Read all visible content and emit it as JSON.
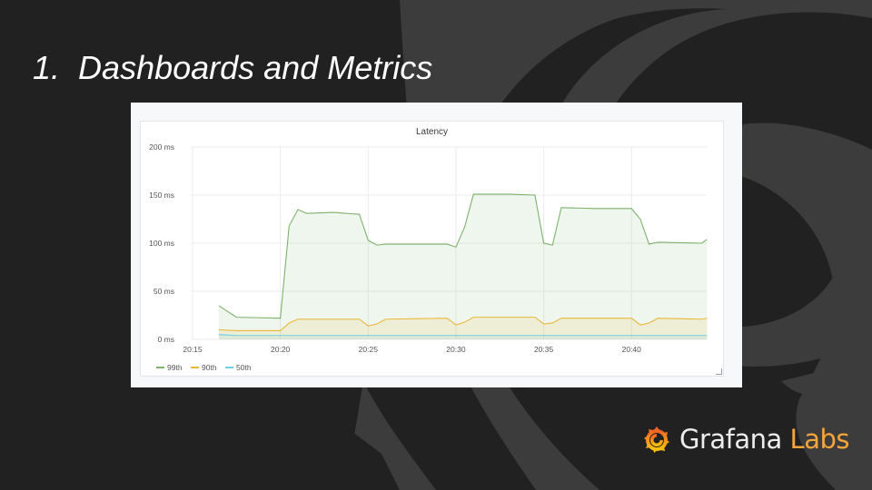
{
  "slide": {
    "title_number": "1.",
    "title_text": "Dashboards and Metrics"
  },
  "panel": {
    "title": "Latency"
  },
  "brand": {
    "name": "Grafana",
    "suffix": "Labs",
    "primary_color": "#ececec",
    "accent_color": "#f6a53a"
  },
  "colors": {
    "background": "#212121",
    "bg_shape": "#3c3c3c",
    "series_99th": "#7eb26d",
    "series_90th": "#eab839",
    "series_50th": "#6ed0e0"
  },
  "chart_data": {
    "type": "area",
    "title": "Latency",
    "xlabel": "",
    "ylabel": "",
    "y_unit": "ms",
    "ylim": [
      0,
      200
    ],
    "yticks": [
      "0 ms",
      "50 ms",
      "100 ms",
      "150 ms",
      "200 ms"
    ],
    "xticks": [
      "20:15",
      "20:20",
      "20:25",
      "20:30",
      "20:35",
      "20:40"
    ],
    "grid": true,
    "legend_position": "bottom-left",
    "x": [
      "20:16.5",
      "20:17.5",
      "20:20",
      "20:20.5",
      "20:21",
      "20:21.5",
      "20:23",
      "20:24.5",
      "20:25",
      "20:25.5",
      "20:26",
      "20:29.5",
      "20:30",
      "20:30.5",
      "20:31",
      "20:33",
      "20:34.5",
      "20:35",
      "20:35.5",
      "20:36",
      "20:38",
      "20:40",
      "20:40.5",
      "20:41",
      "20:41.5",
      "20:44",
      "20:44.3"
    ],
    "series": [
      {
        "name": "99th",
        "values": [
          35,
          23,
          22,
          118,
          135,
          131,
          132,
          130,
          103,
          98,
          99,
          99,
          96,
          117,
          151,
          151,
          150,
          100,
          98,
          137,
          136,
          136,
          125,
          99,
          101,
          100,
          104
        ]
      },
      {
        "name": "90th",
        "values": [
          10,
          9,
          9,
          17,
          21,
          21,
          21,
          21,
          14,
          16,
          21,
          22,
          15,
          18,
          23,
          23,
          23,
          16,
          17,
          22,
          22,
          22,
          15,
          17,
          22,
          21,
          22
        ]
      },
      {
        "name": "50th",
        "values": [
          5,
          4,
          4,
          4,
          4,
          4,
          4,
          4,
          4,
          4,
          4,
          4,
          4,
          4,
          4,
          4,
          4,
          4,
          4,
          4,
          4,
          4,
          4,
          4,
          4,
          4,
          4
        ]
      }
    ]
  }
}
